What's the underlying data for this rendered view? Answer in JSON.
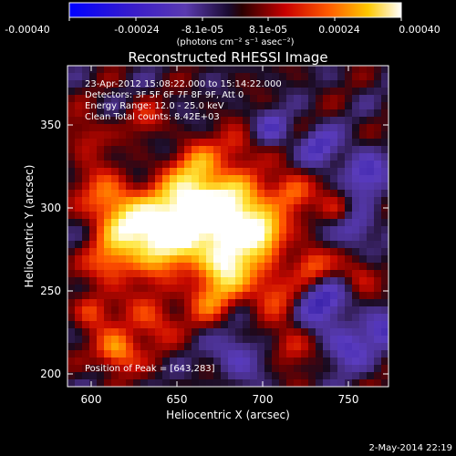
{
  "colorbar": {
    "tick_labels": [
      "-0.00040",
      "-0.00024",
      "-8.1e-05",
      "8.1e-05",
      "0.00024",
      "0.00040"
    ],
    "units_label": "(photons cm⁻² s⁻¹ asec⁻²)"
  },
  "image": {
    "title": "Reconstructed RHESSI Image",
    "info_lines": [
      "23-Apr-2012 15:08:22.000 to 15:14:22.000",
      "Detectors: 3F 5F 6F 7F 8F 9F, Att 0",
      "Energy Range: 12.0 - 25.0 keV",
      "Clean     Total counts: 8.42E+03"
    ],
    "peak_label": "Position of Peak = [643,283]",
    "footer_date": "2-May-2014 22:19"
  },
  "axes": {
    "xlabel": "Heliocentric X (arcsec)",
    "ylabel": "Heliocentric Y (arcsec)",
    "x_ticks": [
      "600",
      "650",
      "700",
      "750"
    ],
    "y_ticks": [
      "200",
      "250",
      "300",
      "350"
    ]
  },
  "colors": {
    "background": "#000000",
    "text": "#ffffff",
    "colormap": [
      "#0000ff",
      "#3b1ec8",
      "#5a3ab0",
      "#302060",
      "#000000",
      "#4a0000",
      "#b00000",
      "#ff2000",
      "#ff7a00",
      "#ffd000",
      "#ffffff"
    ]
  }
}
